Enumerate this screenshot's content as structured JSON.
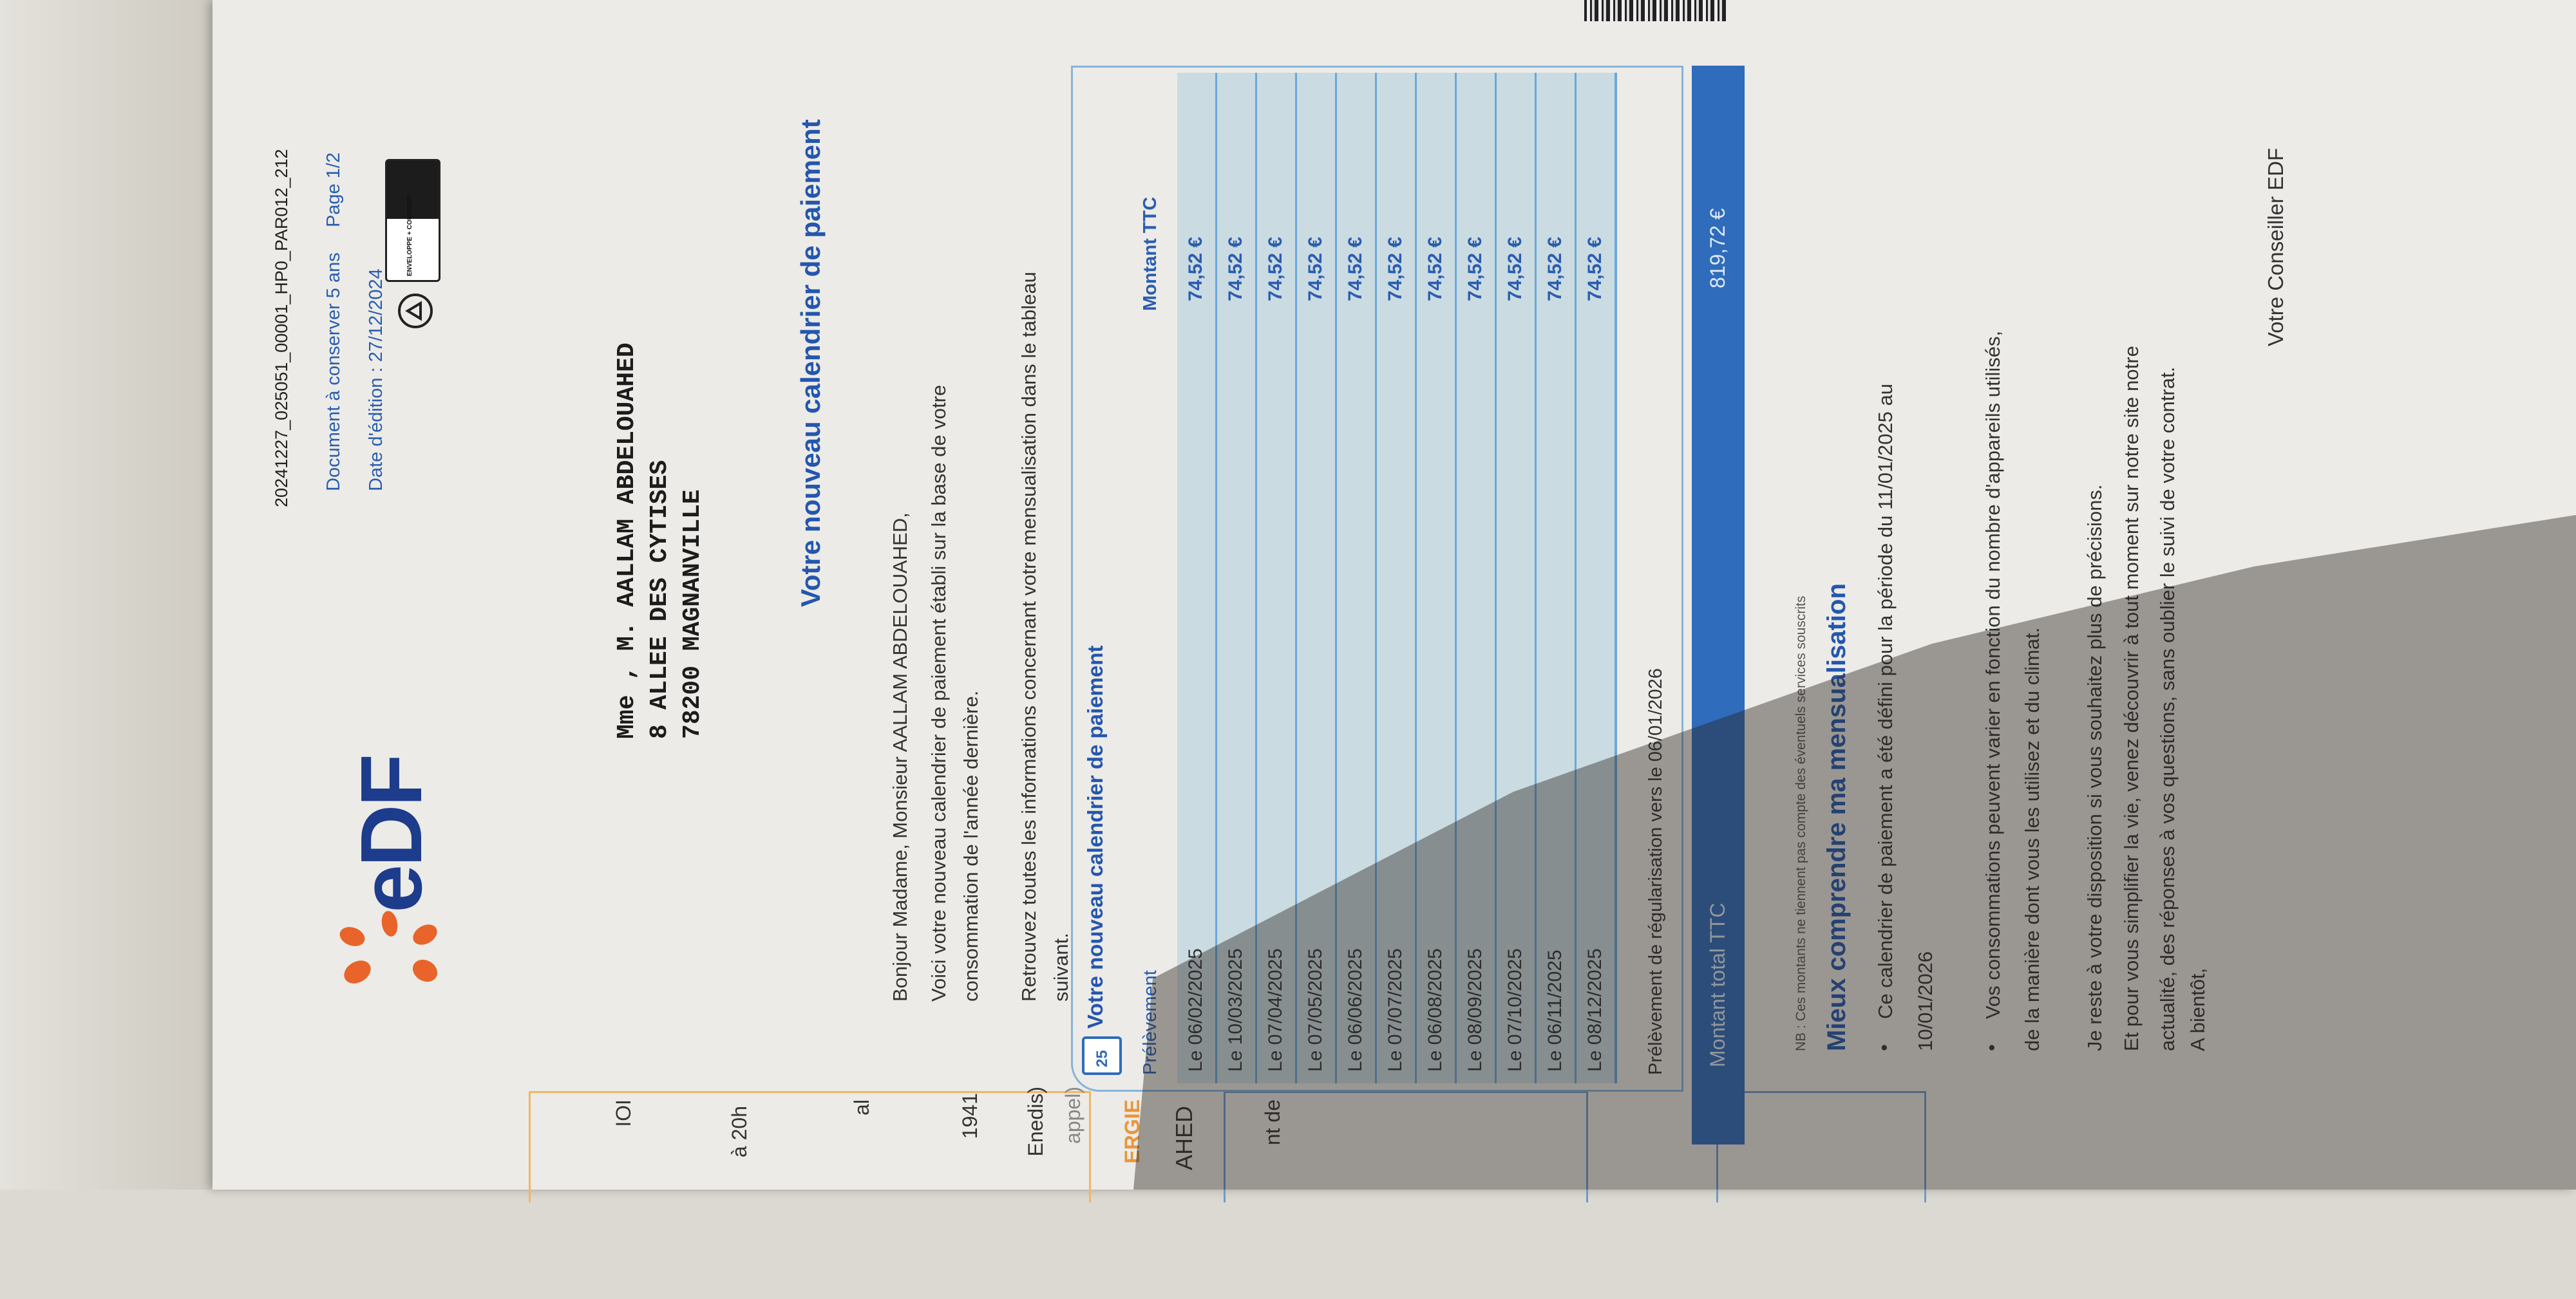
{
  "header": {
    "reference": "20241227_025051_00001_HP0_PAR012_212",
    "keep_notice": "Document à conserver 5 ans",
    "page": "Page 1/2",
    "edition_date": "Date d'édition : 27/12/2024",
    "logo_text": "eDF",
    "triman_label": "ENVELOPPE + COURRIER",
    "brand_color": "#2456ad",
    "logo_accent": "#e8642a"
  },
  "sidebar": {
    "fragments": [
      "IOI",
      "à 20h",
      "al",
      "1941",
      "Enedis)",
      "appel)",
      "ERGIE",
      "AHED",
      "nt de"
    ]
  },
  "address": [
    "Mme , M. AALLAM ABDELOUAHED",
    "8 ALLEE DES CYTISES",
    "78200 MAGNANVILLE"
  ],
  "letter": {
    "title": "Votre nouveau calendrier de paiement",
    "greeting": "Bonjour Madame, Monsieur AALLAM ABDELOUAHED,",
    "p1": [
      "Voici votre nouveau calendrier de paiement établi sur la base de votre",
      "consommation de l'année dernière."
    ],
    "p2": [
      "Retrouvez toutes les informations concernant votre mensualisation dans le tableau",
      "suivant."
    ]
  },
  "table": {
    "icon_day": "25",
    "title": "Votre nouveau calendrier de paiement",
    "col_date": "Prélèvement",
    "col_amount": "Montant TTC",
    "rows": [
      {
        "date": "Le 06/02/2025",
        "amount": "74,52 €"
      },
      {
        "date": "Le 10/03/2025",
        "amount": "74,52 €"
      },
      {
        "date": "Le 07/04/2025",
        "amount": "74,52 €"
      },
      {
        "date": "Le 07/05/2025",
        "amount": "74,52 €"
      },
      {
        "date": "Le 06/06/2025",
        "amount": "74,52 €"
      },
      {
        "date": "Le 07/07/2025",
        "amount": "74,52 €"
      },
      {
        "date": "Le 06/08/2025",
        "amount": "74,52 €"
      },
      {
        "date": "Le 08/09/2025",
        "amount": "74,52 €"
      },
      {
        "date": "Le 07/10/2025",
        "amount": "74,52 €"
      },
      {
        "date": "Le 06/11/2025",
        "amount": "74,52 €"
      },
      {
        "date": "Le 08/12/2025",
        "amount": "74,52 €"
      }
    ],
    "regularisation": "Prélèvement de régularisation vers le 06/01/2026",
    "total_label": "Montant total TTC",
    "total_value": "819,72 €"
  },
  "info": {
    "nb": "NB : Ces montants ne tiennent pas compte des éventuels services souscrits",
    "heading": "Mieux comprendre ma mensualisation",
    "bullet1": [
      "Ce calendrier de paiement a été défini pour la période du 11/01/2025 au",
      "10/01/2026"
    ],
    "bullet2": [
      "Vos consommations peuvent varier en fonction du nombre d'appareils utilisés,",
      "de la manière dont vous les utilisez et du climat."
    ],
    "closing": [
      "Je reste à votre disposition si vous souhaitez plus de précisions.",
      "Et pour vous simplifier la vie, venez découvrir à tout moment sur notre site notre",
      "actualité, des réponses à vos questions, sans oublier le suivi de votre contrat."
    ],
    "farewell": "A bientôt,",
    "signature": "Votre Conseiller EDF"
  }
}
